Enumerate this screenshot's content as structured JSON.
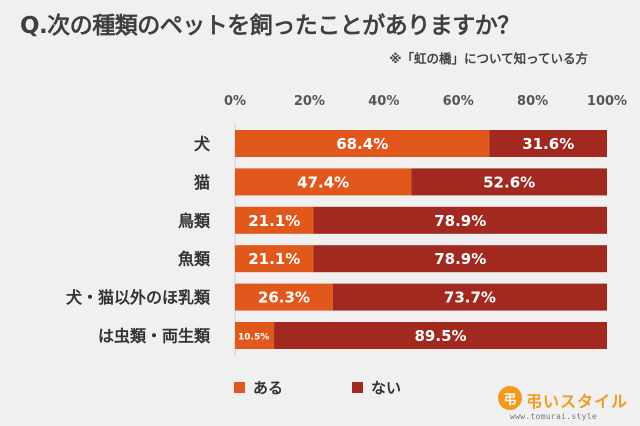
{
  "colors": {
    "series_aru": "#e1581d",
    "series_nai": "#a2291f",
    "background": "#f0f0f0",
    "logo": "#f29a1e"
  },
  "logo": {
    "name": "弔いスタイル",
    "url": "www.tomurai.style"
  },
  "chart_data": {
    "type": "bar",
    "orientation": "horizontal",
    "stacked": true,
    "title": "Q.次の種類のペットを飼ったことがありますか？",
    "subtitle": "※「虹の橋」について知っている方",
    "categories": [
      "犬",
      "猫",
      "鳥類",
      "魚類",
      "犬・猫以外のほ乳類",
      "は虫類・両生類"
    ],
    "series": [
      {
        "name": "ある",
        "values": [
          68.4,
          47.4,
          21.1,
          21.1,
          26.3,
          10.5
        ],
        "labels": [
          "68.4%",
          "47.4%",
          "21.1%",
          "21.1%",
          "26.3%",
          "10.5%"
        ]
      },
      {
        "name": "ない",
        "values": [
          31.6,
          52.6,
          78.9,
          78.9,
          73.7,
          89.5
        ],
        "labels": [
          "31.6%",
          "52.6%",
          "78.9%",
          "78.9%",
          "73.7%",
          "89.5%"
        ]
      }
    ],
    "xlim": [
      0,
      100
    ],
    "x_ticks": [
      "0%",
      "20%",
      "40%",
      "60%",
      "80%",
      "100%"
    ],
    "grid": false,
    "legend_position": "bottom-left"
  }
}
